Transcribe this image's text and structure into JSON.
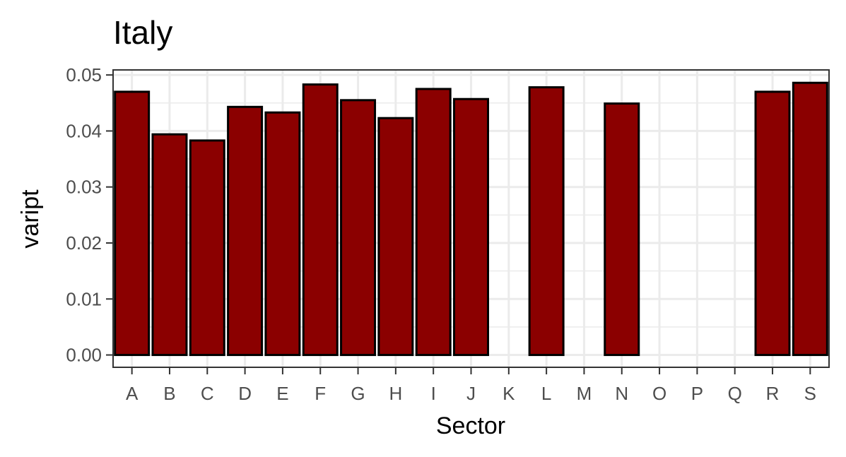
{
  "chart_data": {
    "type": "bar",
    "title": "Italy",
    "xlabel": "Sector",
    "ylabel": "vaript",
    "categories": [
      "A",
      "B",
      "C",
      "D",
      "E",
      "F",
      "G",
      "H",
      "I",
      "J",
      "K",
      "L",
      "M",
      "N",
      "O",
      "P",
      "Q",
      "R",
      "S"
    ],
    "values": [
      0.047,
      0.0394,
      0.0383,
      0.0443,
      0.0433,
      0.0483,
      0.0455,
      0.0423,
      0.0475,
      0.0457,
      null,
      0.0478,
      null,
      0.0449,
      null,
      null,
      null,
      0.047,
      0.0486
    ],
    "ylim": [
      -0.0022,
      0.0509
    ],
    "yticks": [
      0.0,
      0.01,
      0.02,
      0.03,
      0.04,
      0.05
    ],
    "ytick_labels": [
      "0.00",
      "0.01",
      "0.02",
      "0.03",
      "0.04",
      "0.05"
    ],
    "grid": true,
    "colors": {
      "bar_fill": "#8b0000",
      "bar_stroke": "#000000",
      "grid": "#ebebeb",
      "panel_border": "#333333"
    }
  }
}
